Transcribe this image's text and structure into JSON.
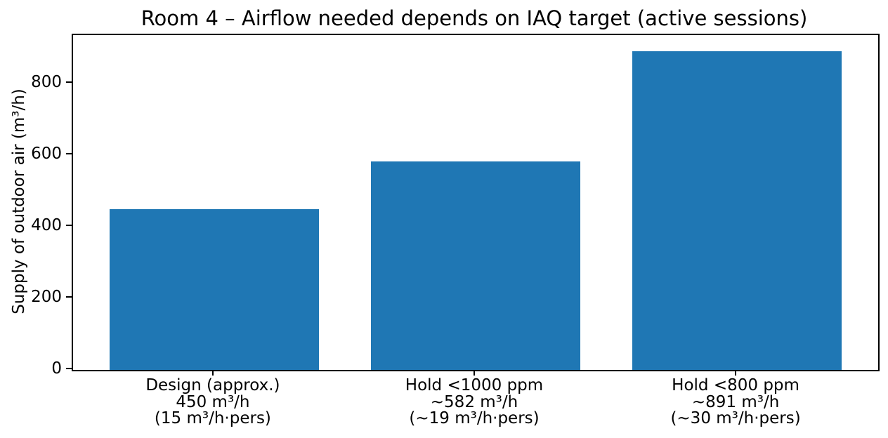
{
  "chart_data": {
    "type": "bar",
    "title": "Room 4 – Airflow needed depends on IAQ target (active sessions)",
    "ylabel": "Supply of outdoor air (m³/h)",
    "xlabel": "",
    "categories": [
      [
        "Design (approx.)",
        "450 m³/h",
        "(15 m³/h·pers)"
      ],
      [
        "Hold <1000 ppm",
        "~582 m³/h",
        "(~19 m³/h·pers)"
      ],
      [
        "Hold <800 ppm",
        "~891 m³/h",
        "(~30 m³/h·pers)"
      ]
    ],
    "values": [
      450,
      582,
      891
    ],
    "yticks": [
      0,
      200,
      400,
      600,
      800
    ],
    "ylim": [
      0,
      935.5
    ],
    "bar_width_data_units": 0.8,
    "bar_color": "#1f77b4",
    "axis_color": "#000000",
    "text_color": "#000000",
    "background_color": "#ffffff",
    "grid": false,
    "legend": false
  }
}
